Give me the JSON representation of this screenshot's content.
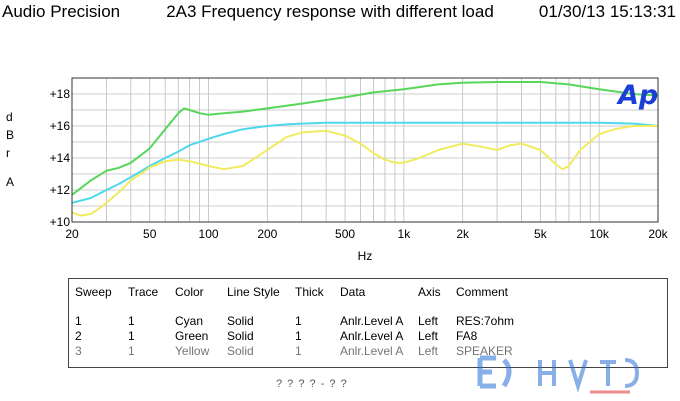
{
  "header": {
    "brand": "Audio Precision",
    "title": "2A3 Frequency response with different load",
    "timestamp": "01/30/13 15:13:31"
  },
  "logo": {
    "text": "Ap",
    "color": "#1a3fd6"
  },
  "chart_data": {
    "type": "line",
    "title": "2A3 Frequency response with different load",
    "xlabel": "Hz",
    "ylabel": "dBr A",
    "xscale": "log",
    "xlim": [
      20,
      20000
    ],
    "ylim": [
      10,
      19
    ],
    "grid": true,
    "xticks": [
      20,
      50,
      100,
      200,
      500,
      1000,
      2000,
      5000,
      10000,
      20000
    ],
    "xtick_labels": [
      "20",
      "50",
      "100",
      "200",
      "500",
      "1k",
      "2k",
      "5k",
      "10k",
      "20k"
    ],
    "yticks": [
      10,
      12,
      14,
      16,
      18
    ],
    "ytick_labels": [
      "+10",
      "+12",
      "+14",
      "+16",
      "+18"
    ],
    "series": [
      {
        "name": "Cyan",
        "color": "#4fd8ec",
        "x": [
          20,
          25,
          30,
          35,
          40,
          50,
          60,
          70,
          80,
          100,
          120,
          150,
          200,
          250,
          300,
          400,
          500,
          700,
          1000,
          2000,
          5000,
          10000,
          15000,
          20000
        ],
        "y": [
          11.2,
          11.5,
          12.0,
          12.4,
          12.8,
          13.5,
          14.0,
          14.4,
          14.8,
          15.2,
          15.5,
          15.8,
          16.0,
          16.1,
          16.15,
          16.2,
          16.2,
          16.2,
          16.2,
          16.2,
          16.2,
          16.2,
          16.15,
          16.0
        ]
      },
      {
        "name": "Green",
        "color": "#57d65a",
        "x": [
          20,
          25,
          30,
          35,
          40,
          50,
          60,
          70,
          75,
          80,
          90,
          100,
          120,
          150,
          200,
          300,
          500,
          700,
          1000,
          1500,
          2000,
          3000,
          5000,
          7000,
          10000,
          15000,
          20000
        ],
        "y": [
          11.7,
          12.6,
          13.2,
          13.4,
          13.7,
          14.6,
          15.8,
          16.8,
          17.1,
          17.0,
          16.8,
          16.7,
          16.8,
          16.9,
          17.1,
          17.4,
          17.8,
          18.1,
          18.3,
          18.6,
          18.7,
          18.75,
          18.75,
          18.6,
          18.3,
          18.0,
          17.9
        ]
      },
      {
        "name": "Yellow",
        "color": "#f0ec60",
        "x": [
          20,
          22,
          25,
          28,
          30,
          35,
          40,
          50,
          60,
          70,
          80,
          100,
          120,
          150,
          200,
          250,
          300,
          400,
          500,
          600,
          700,
          800,
          900,
          1000,
          1200,
          1500,
          2000,
          2500,
          3000,
          3500,
          4000,
          5000,
          6000,
          6500,
          7000,
          8000,
          10000,
          12000,
          15000,
          20000
        ],
        "y": [
          10.6,
          10.4,
          10.5,
          10.9,
          11.2,
          11.9,
          12.6,
          13.4,
          13.8,
          13.9,
          13.8,
          13.5,
          13.3,
          13.5,
          14.5,
          15.3,
          15.6,
          15.7,
          15.4,
          14.9,
          14.3,
          13.9,
          13.7,
          13.7,
          14.0,
          14.5,
          14.9,
          14.7,
          14.5,
          14.8,
          14.9,
          14.5,
          13.6,
          13.3,
          13.5,
          14.5,
          15.5,
          15.8,
          16.0,
          16.0
        ]
      }
    ]
  },
  "legend": {
    "headers": [
      "Sweep",
      "Trace",
      "Color",
      "Line Style",
      "Thick",
      "Data",
      "Axis",
      "Comment"
    ],
    "rows": [
      [
        "1",
        "1",
        "Cyan",
        "Solid",
        "1",
        "Anlr.Level A",
        "Left",
        "RES:7ohm"
      ],
      [
        "2",
        "1",
        "Green",
        "Solid",
        "1",
        "Anlr.Level A",
        "Left",
        "FA8"
      ],
      [
        "3",
        "1",
        "Yellow",
        "Solid",
        "1",
        "Anlr.Level A",
        "Left",
        "SPEAKER"
      ]
    ]
  },
  "footer": {
    "text": "? ? ? ? - ? ?"
  }
}
